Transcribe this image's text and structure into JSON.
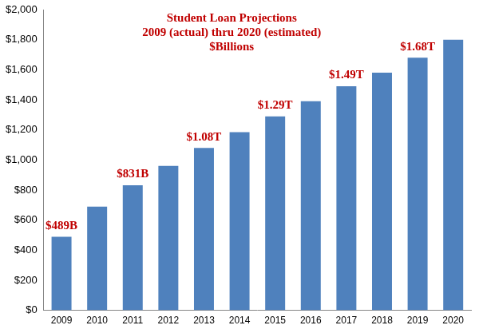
{
  "chart_data": {
    "type": "bar",
    "title": "Student Loan Projections\n2009 (actual) thru 2020 (estimated)\n$Billions",
    "categories": [
      "2009",
      "2010",
      "2011",
      "2012",
      "2013",
      "2014",
      "2015",
      "2016",
      "2017",
      "2018",
      "2019",
      "2020"
    ],
    "values": [
      489,
      690,
      831,
      960,
      1080,
      1185,
      1290,
      1390,
      1490,
      1580,
      1680,
      1800
    ],
    "value_labels": [
      "$489B",
      null,
      "$831B",
      null,
      "$1.08T",
      null,
      "$1.29T",
      null,
      "$1.49T",
      null,
      "$1.68T",
      null
    ],
    "data_labels": true,
    "color": "#4f81bd",
    "ylim": [
      0,
      2000
    ],
    "yticks": [
      {
        "value": 0,
        "label": "$0"
      },
      {
        "value": 200,
        "label": "$200"
      },
      {
        "value": 400,
        "label": "$400"
      },
      {
        "value": 600,
        "label": "$600"
      },
      {
        "value": 800,
        "label": "$800"
      },
      {
        "value": 1000,
        "label": "$1,000"
      },
      {
        "value": 1200,
        "label": "$1,200"
      },
      {
        "value": 1400,
        "label": "$1,400"
      },
      {
        "value": 1600,
        "label": "$1,600"
      },
      {
        "value": 1800,
        "label": "$1,800"
      },
      {
        "value": 2000,
        "label": "$2,000"
      }
    ],
    "grid": false
  }
}
